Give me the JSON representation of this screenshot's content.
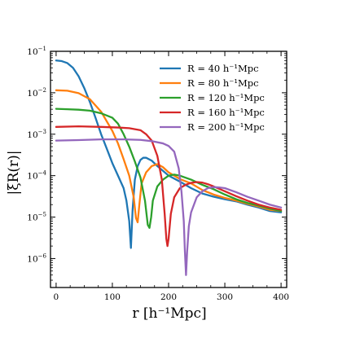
{
  "chart_data": {
    "type": "line",
    "xlabel": "r [h⁻¹Mpc]",
    "ylabel": "|ξR(r)|",
    "x_ticks": [
      "0",
      "100",
      "200",
      "300",
      "400"
    ],
    "y_ticks": [
      {
        "base": "10",
        "exp": "−1"
      },
      {
        "base": "10",
        "exp": "−2"
      },
      {
        "base": "10",
        "exp": "−3"
      },
      {
        "base": "10",
        "exp": "−4"
      },
      {
        "base": "10",
        "exp": "−5"
      },
      {
        "base": "10",
        "exp": "−6"
      }
    ],
    "xlim": [
      -10,
      410
    ],
    "ylim": [
      2e-07,
      0.1
    ],
    "yscale": "log",
    "grid": false,
    "legend_position": "top-right",
    "series": [
      {
        "name": "R = 40 h⁻¹Mpc",
        "color": "#1f77b4",
        "points": [
          [
            0,
            0.06
          ],
          [
            10,
            0.058
          ],
          [
            20,
            0.052
          ],
          [
            30,
            0.04
          ],
          [
            40,
            0.025
          ],
          [
            50,
            0.013
          ],
          [
            60,
            0.006
          ],
          [
            70,
            0.0025
          ],
          [
            80,
            0.001
          ],
          [
            90,
            0.00045
          ],
          [
            100,
            0.0002
          ],
          [
            110,
            0.0001
          ],
          [
            120,
            5e-05
          ],
          [
            125,
            2.5e-05
          ],
          [
            130,
            8e-06
          ],
          [
            133,
            1.8e-06
          ],
          [
            136,
            1.5e-05
          ],
          [
            140,
            8e-05
          ],
          [
            145,
            0.00017
          ],
          [
            150,
            0.00024
          ],
          [
            155,
            0.00027
          ],
          [
            160,
            0.00027
          ],
          [
            170,
            0.00023
          ],
          [
            180,
            0.00017
          ],
          [
            200,
            0.0001
          ],
          [
            220,
            7.2e-05
          ],
          [
            240,
            5e-05
          ],
          [
            260,
            3.7e-05
          ],
          [
            280,
            3.1e-05
          ],
          [
            300,
            2.7e-05
          ],
          [
            320,
            2.4e-05
          ],
          [
            340,
            2e-05
          ],
          [
            360,
            1.7e-05
          ],
          [
            380,
            1.4e-05
          ],
          [
            400,
            1.3e-05
          ]
        ]
      },
      {
        "name": "R = 80 h⁻¹Mpc",
        "color": "#ff7f0e",
        "points": [
          [
            0,
            0.0115
          ],
          [
            20,
            0.0112
          ],
          [
            40,
            0.0098
          ],
          [
            60,
            0.007
          ],
          [
            80,
            0.0035
          ],
          [
            100,
            0.0012
          ],
          [
            110,
            0.0006
          ],
          [
            120,
            0.00025
          ],
          [
            130,
            0.0001
          ],
          [
            138,
            3e-05
          ],
          [
            142,
            9.5e-06
          ],
          [
            145,
            7.5e-06
          ],
          [
            148,
            2e-05
          ],
          [
            152,
            6.5e-05
          ],
          [
            160,
            0.00012
          ],
          [
            170,
            0.00017
          ],
          [
            180,
            0.00019
          ],
          [
            190,
            0.00016
          ],
          [
            200,
            0.00012
          ],
          [
            220,
            8.3e-05
          ],
          [
            240,
            6.5e-05
          ],
          [
            260,
            4.5e-05
          ],
          [
            280,
            3.5e-05
          ],
          [
            300,
            2.9e-05
          ],
          [
            320,
            2.5e-05
          ],
          [
            340,
            2.1e-05
          ],
          [
            360,
            1.8e-05
          ],
          [
            380,
            1.5e-05
          ],
          [
            400,
            1.4e-05
          ]
        ]
      },
      {
        "name": "R = 120 h⁻¹Mpc",
        "color": "#2ca02c",
        "points": [
          [
            0,
            0.0041
          ],
          [
            20,
            0.004
          ],
          [
            40,
            0.0039
          ],
          [
            60,
            0.0037
          ],
          [
            80,
            0.0032
          ],
          [
            100,
            0.0025
          ],
          [
            110,
            0.0018
          ],
          [
            120,
            0.001
          ],
          [
            130,
            0.0005
          ],
          [
            140,
            0.00022
          ],
          [
            150,
            9e-05
          ],
          [
            158,
            2.5e-05
          ],
          [
            163,
            6.5e-06
          ],
          [
            166,
            5.5e-06
          ],
          [
            169,
            1e-05
          ],
          [
            172,
            2.5e-05
          ],
          [
            180,
            5.5e-05
          ],
          [
            190,
            8e-05
          ],
          [
            200,
            0.0001
          ],
          [
            210,
            0.000106
          ],
          [
            220,
            0.0001
          ],
          [
            240,
            8e-05
          ],
          [
            260,
            6e-05
          ],
          [
            280,
            4.7e-05
          ],
          [
            300,
            3.5e-05
          ],
          [
            320,
            2.7e-05
          ],
          [
            340,
            2.2e-05
          ],
          [
            360,
            1.9e-05
          ],
          [
            380,
            1.6e-05
          ],
          [
            400,
            1.4e-05
          ]
        ]
      },
      {
        "name": "R = 160 h⁻¹Mpc",
        "color": "#d62728",
        "points": [
          [
            0,
            0.0015
          ],
          [
            40,
            0.00155
          ],
          [
            80,
            0.0015
          ],
          [
            110,
            0.00145
          ],
          [
            130,
            0.0014
          ],
          [
            150,
            0.00125
          ],
          [
            160,
            0.001
          ],
          [
            170,
            0.0007
          ],
          [
            180,
            0.0003
          ],
          [
            188,
            8e-05
          ],
          [
            193,
            1.2e-05
          ],
          [
            196,
            3e-06
          ],
          [
            198,
            2e-06
          ],
          [
            200,
            3e-06
          ],
          [
            204,
            1.2e-05
          ],
          [
            210,
            3e-05
          ],
          [
            220,
            5e-05
          ],
          [
            230,
            6e-05
          ],
          [
            240,
            6.7e-05
          ],
          [
            250,
            7e-05
          ],
          [
            260,
            6.8e-05
          ],
          [
            270,
            6.2e-05
          ],
          [
            280,
            5.5e-05
          ],
          [
            300,
            4.2e-05
          ],
          [
            320,
            3.2e-05
          ],
          [
            340,
            2.5e-05
          ],
          [
            360,
            2e-05
          ],
          [
            380,
            1.7e-05
          ],
          [
            400,
            1.5e-05
          ]
        ]
      },
      {
        "name": "R = 200 h⁻¹Mpc",
        "color": "#9467bd",
        "points": [
          [
            0,
            0.0007
          ],
          [
            40,
            0.00072
          ],
          [
            80,
            0.00075
          ],
          [
            120,
            0.00075
          ],
          [
            150,
            0.00073
          ],
          [
            170,
            0.00068
          ],
          [
            190,
            0.0006
          ],
          [
            200,
            0.00052
          ],
          [
            210,
            0.00038
          ],
          [
            218,
            0.00015
          ],
          [
            223,
            4e-05
          ],
          [
            227,
            8e-06
          ],
          [
            229,
            1.5e-06
          ],
          [
            231,
            4e-07
          ],
          [
            233,
            1.5e-06
          ],
          [
            236,
            6e-06
          ],
          [
            240,
            1.3e-05
          ],
          [
            250,
            3e-05
          ],
          [
            260,
            4.2e-05
          ],
          [
            270,
            5e-05
          ],
          [
            280,
            5.3e-05
          ],
          [
            290,
            5.2e-05
          ],
          [
            300,
            5e-05
          ],
          [
            320,
            4e-05
          ],
          [
            340,
            3.1e-05
          ],
          [
            360,
            2.5e-05
          ],
          [
            380,
            2e-05
          ],
          [
            400,
            1.7e-05
          ]
        ]
      }
    ]
  }
}
